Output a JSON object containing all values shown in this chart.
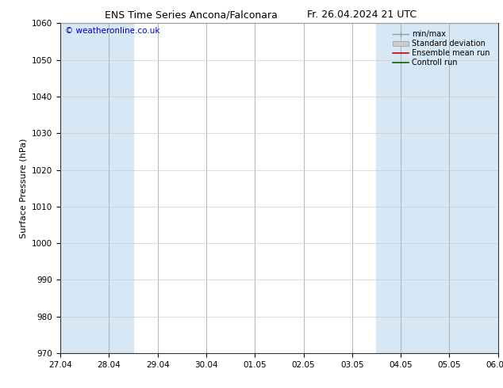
{
  "title_left": "ENS Time Series Ancona/Falconara",
  "title_right": "Fr. 26.04.2024 21 UTC",
  "ylabel": "Surface Pressure (hPa)",
  "ylim": [
    970,
    1060
  ],
  "yticks": [
    970,
    980,
    990,
    1000,
    1010,
    1020,
    1030,
    1040,
    1050,
    1060
  ],
  "xtick_labels": [
    "27.04",
    "28.04",
    "29.04",
    "30.04",
    "01.05",
    "02.05",
    "03.05",
    "04.05",
    "05.05",
    "06.05"
  ],
  "copyright": "© weatheronline.co.uk",
  "legend_entries": [
    "min/max",
    "Standard deviation",
    "Ensemble mean run",
    "Controll run"
  ],
  "band_color": "#d6e8f5",
  "background_color": "#ffffff",
  "line_color_mean": "#cc0000",
  "line_color_control": "#006600",
  "minmax_color": "#999999",
  "std_color": "#bbbbbb",
  "title_fontsize": 9,
  "tick_fontsize": 7.5,
  "ylabel_fontsize": 8,
  "copyright_color": "#0000bb"
}
